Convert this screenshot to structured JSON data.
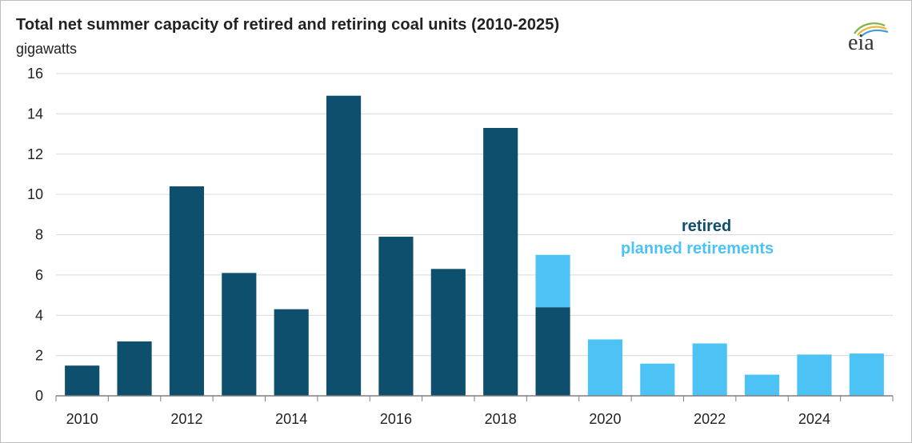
{
  "colors": {
    "retired": "#0d4f6c",
    "planned": "#4dc3f5",
    "grid": "#d9d9d9",
    "axis": "#7f7f7f"
  },
  "logo_text": "eia",
  "chart_data": {
    "type": "bar",
    "stacked": true,
    "title": "Total net summer capacity of retired and retiring coal units (2010-2025)",
    "ylabel": "gigawatts",
    "xlabel": "",
    "categories": [
      "2010",
      "2011",
      "2012",
      "2013",
      "2014",
      "2015",
      "2016",
      "2017",
      "2018",
      "2019",
      "2020",
      "2021",
      "2022",
      "2023",
      "2024",
      "2025"
    ],
    "x_tick_labels": [
      "2010",
      "2012",
      "2014",
      "2016",
      "2018",
      "2020",
      "2022",
      "2024"
    ],
    "ylim": [
      0,
      16
    ],
    "y_ticks": [
      0,
      2,
      4,
      6,
      8,
      10,
      12,
      14,
      16
    ],
    "grid": true,
    "series": [
      {
        "name": "retired",
        "color": "#0d4f6c",
        "values": [
          1.5,
          2.7,
          10.4,
          6.1,
          4.3,
          14.9,
          7.9,
          6.3,
          13.3,
          4.4,
          0,
          0,
          0,
          0,
          0,
          0
        ]
      },
      {
        "name": "planned retirements",
        "color": "#4dc3f5",
        "values": [
          0,
          0,
          0,
          0,
          0,
          0,
          0,
          0,
          0,
          2.6,
          2.8,
          1.6,
          2.6,
          1.05,
          2.05,
          2.1
        ]
      }
    ],
    "legend_placement": "inside-right"
  }
}
